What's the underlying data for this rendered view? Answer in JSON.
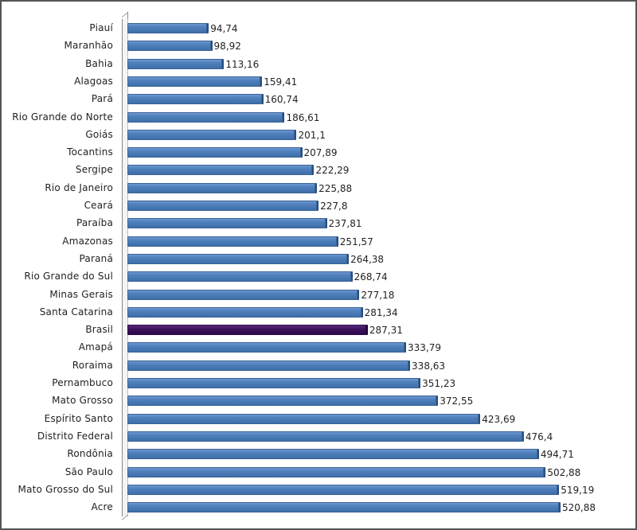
{
  "chart_data": {
    "type": "bar",
    "orientation": "horizontal",
    "title": "",
    "xlabel": "",
    "ylabel": "",
    "xlim": [
      0,
      525
    ],
    "grid": false,
    "legend": null,
    "categories": [
      "Piauí",
      "Maranhão",
      "Bahia",
      "Alagoas",
      "Pará",
      "Rio Grande do Norte",
      "Goiás",
      "Tocantins",
      "Sergipe",
      "Rio de Janeiro",
      "Ceará",
      "Paraíba",
      "Amazonas",
      "Paraná",
      "Rio Grande do Sul",
      "Minas Gerais",
      "Santa Catarina",
      "Brasil",
      "Amapá",
      "Roraima",
      "Pernambuco",
      "Mato Grosso",
      "Espírito Santo",
      "Distrito Federal",
      "Rondônia",
      "São Paulo",
      "Mato Grosso do Sul",
      "Acre"
    ],
    "values": [
      94.74,
      98.92,
      113.16,
      159.41,
      160.74,
      186.61,
      201.1,
      207.89,
      222.29,
      225.88,
      227.8,
      237.81,
      251.57,
      264.38,
      268.74,
      277.18,
      281.34,
      287.31,
      333.79,
      338.63,
      351.23,
      372.55,
      423.69,
      476.4,
      494.71,
      502.88,
      519.19,
      520.88
    ],
    "value_labels": [
      "94,74",
      "98,92",
      "113,16",
      "159,41",
      "160,74",
      "186,61",
      "201,1",
      "207,89",
      "222,29",
      "225,88",
      "227,8",
      "237,81",
      "251,57",
      "264,38",
      "268,74",
      "277,18",
      "281,34",
      "287,31",
      "333,79",
      "338,63",
      "351,23",
      "372,55",
      "423,69",
      "476,4",
      "494,71",
      "502,88",
      "519,19",
      "520,88"
    ],
    "highlight_category": "Brasil",
    "colors": {
      "bar": "#4f81bd",
      "highlight": "#3e1260"
    }
  }
}
